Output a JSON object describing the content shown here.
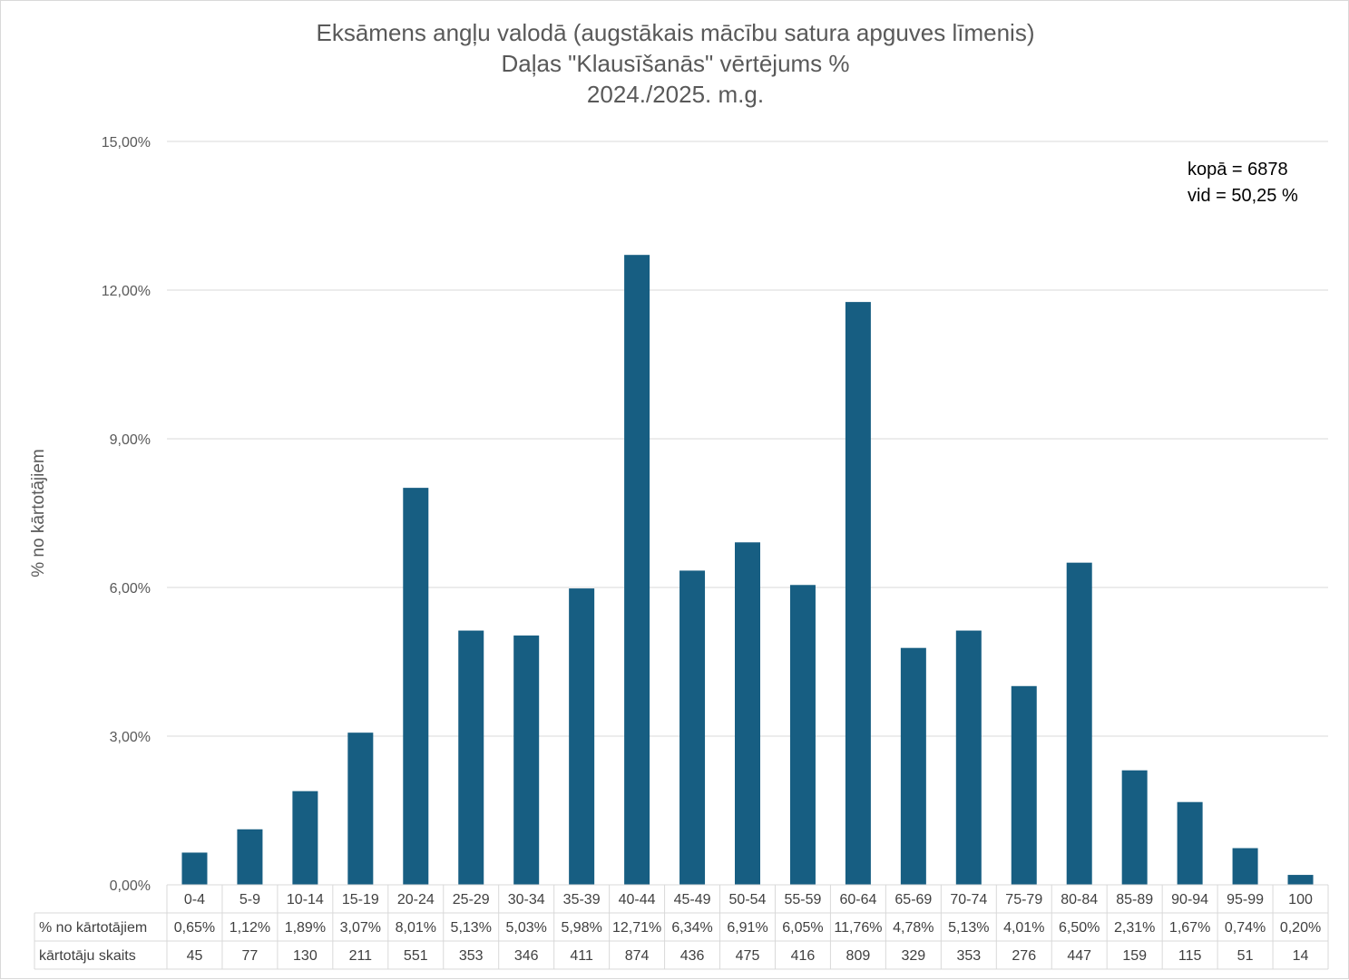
{
  "title_lines": [
    "Eksāmens angļu valodā (augstākais mācību satura apguves līmenis)",
    "Daļas \"Klausīšanās\" vērtējums %",
    "2024./2025. m.g."
  ],
  "annotation": {
    "line1": "kopā = 6878",
    "line2": "vid = 50,25 %"
  },
  "colors": {
    "bar": "#175E82",
    "grid": "#d9d9d9",
    "text": "#595959"
  },
  "chart_data": {
    "type": "bar",
    "title": "Eksāmens angļu valodā (augstākais mācību satura apguves līmenis) Daļas \"Klausīšanās\" vērtējums % 2024./2025. m.g.",
    "xlabel": "",
    "ylabel": "% no kārtotājiem",
    "ylim": [
      0,
      15
    ],
    "yticks": [
      "0,00%",
      "3,00%",
      "6,00%",
      "9,00%",
      "12,00%",
      "15,00%"
    ],
    "grid": true,
    "categories": [
      "0-4",
      "5-9",
      "10-14",
      "15-19",
      "20-24",
      "25-29",
      "30-34",
      "35-39",
      "40-44",
      "45-49",
      "50-54",
      "55-59",
      "60-64",
      "65-69",
      "70-74",
      "75-79",
      "80-84",
      "85-89",
      "90-94",
      "95-99",
      "100"
    ],
    "series": [
      {
        "name": "% no kārtotājiem",
        "values": [
          0.65,
          1.12,
          1.89,
          3.07,
          8.01,
          5.13,
          5.03,
          5.98,
          12.71,
          6.34,
          6.91,
          6.05,
          11.76,
          4.78,
          5.13,
          4.01,
          6.5,
          2.31,
          1.67,
          0.74,
          0.2
        ]
      }
    ],
    "table": {
      "rows": [
        {
          "label": "% no kārtotājiem",
          "values": [
            "0,65%",
            "1,12%",
            "1,89%",
            "3,07%",
            "8,01%",
            "5,13%",
            "5,03%",
            "5,98%",
            "12,71%",
            "6,34%",
            "6,91%",
            "6,05%",
            "11,76%",
            "4,78%",
            "5,13%",
            "4,01%",
            "6,50%",
            "2,31%",
            "1,67%",
            "0,74%",
            "0,20%"
          ]
        },
        {
          "label": "kārtotāju skaits",
          "values": [
            "45",
            "77",
            "130",
            "211",
            "551",
            "353",
            "346",
            "411",
            "874",
            "436",
            "475",
            "416",
            "809",
            "329",
            "353",
            "276",
            "447",
            "159",
            "115",
            "51",
            "14"
          ]
        }
      ]
    }
  }
}
